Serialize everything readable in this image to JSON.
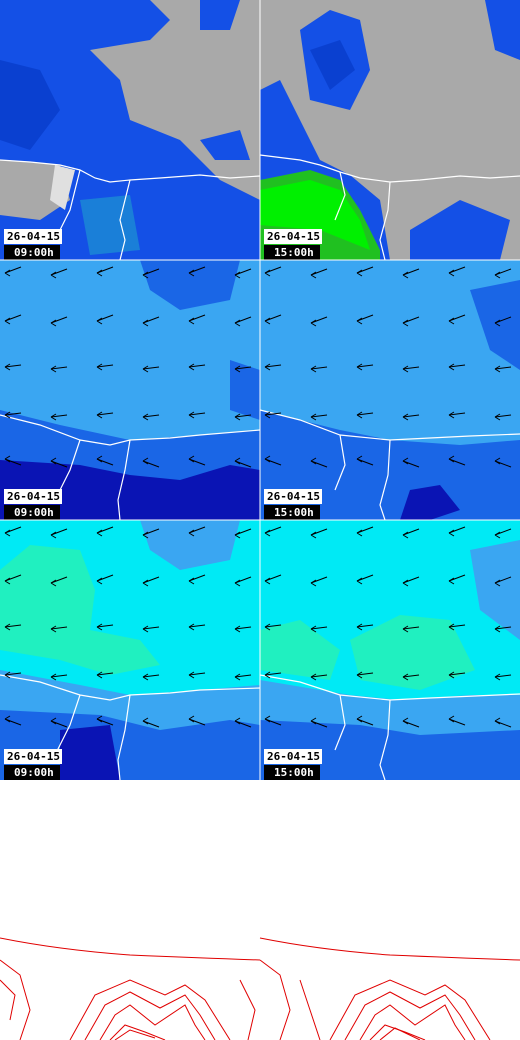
{
  "panels": [
    {
      "date": "26-04-15",
      "time": "09:00h"
    },
    {
      "date": "26-04-15",
      "time": "15:00h"
    },
    {
      "date": "26-04-15",
      "time": "09:00h"
    },
    {
      "date": "26-04-15",
      "time": "15:00h"
    },
    {
      "date": "26-04-15",
      "time": "09:00h"
    },
    {
      "date": "26-04-15",
      "time": "15:00h"
    }
  ]
}
